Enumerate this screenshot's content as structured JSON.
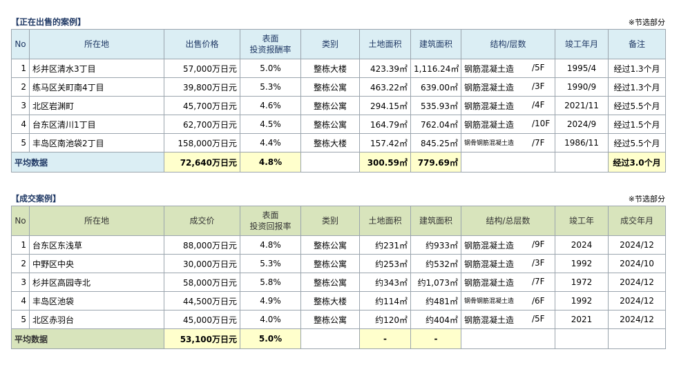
{
  "sections": [
    {
      "title": "【正在出售的案例】",
      "note": "※节选部分",
      "headers": [
        "No",
        "所在地",
        "出售价格",
        [
          "表面",
          "投资报酬率"
        ],
        "类别",
        "土地面积",
        "建筑面积",
        "结构/层数",
        "竣工年月",
        "备注"
      ],
      "rows": [
        [
          1,
          "杉并区清水3丁目",
          "57,000万日元",
          "5.0%",
          "整栋大楼",
          "423.39㎡",
          "1,116.24㎡",
          "钢筋混凝土造",
          "/5F",
          "1995/4",
          "经过1.3个月"
        ],
        [
          2,
          "练马区关町南4丁目",
          "39,800万日元",
          "5.3%",
          "整栋公寓",
          "463.22㎡",
          "639.00㎡",
          "钢筋混凝土造",
          "/3F",
          "1990/9",
          "经过1.3个月"
        ],
        [
          3,
          "北区岩渊町",
          "45,700万日元",
          "4.6%",
          "整栋公寓",
          "294.15㎡",
          "535.93㎡",
          "钢筋混凝土造",
          "/4F",
          "2021/11",
          "经过5.5个月"
        ],
        [
          4,
          "台东区清川1丁目",
          "62,700万日元",
          "4.5%",
          "整栋公寓",
          "164.79㎡",
          "762.04㎡",
          "钢筋混凝土造",
          "/10F",
          "2024/9",
          "经过1.5个月"
        ],
        [
          5,
          "丰岛区南池袋2丁目",
          "158,000万日元",
          "4.4%",
          "整栋大楼",
          "157.42㎡",
          "845.25㎡",
          "钢骨钢筋混凝土造",
          "/7F",
          "1986/11",
          "经过5.5个月"
        ]
      ],
      "average": {
        "label": "平均数据",
        "price": "72,640万日元",
        "yield": "4.8%",
        "land": "300.59㎡",
        "building": "779.69㎡",
        "remark": "经过3.0个月"
      }
    },
    {
      "title": "【成交案例】",
      "note": "※节选部分",
      "headers": [
        "No",
        "所在地",
        "成交价",
        [
          "表面",
          "投资回报率"
        ],
        "类别",
        "土地面积",
        "建筑面积",
        "结构/总层数",
        "竣工年",
        "成交年月"
      ],
      "rows": [
        [
          1,
          "台东区东浅草",
          "88,000万日元",
          "4.8%",
          "整栋公寓",
          "约231㎡",
          "约933㎡",
          "钢筋混凝土造",
          "/9F",
          "2024",
          "2024/12"
        ],
        [
          2,
          "中野区中央",
          "30,000万日元",
          "5.3%",
          "整栋公寓",
          "约253㎡",
          "约532㎡",
          "钢筋混凝土造",
          "/3F",
          "1992",
          "2024/10"
        ],
        [
          3,
          "杉并区高园寺北",
          "58,000万日元",
          "5.8%",
          "整栋公寓",
          "约343㎡",
          "约1,073㎡",
          "钢筋混凝土造",
          "/7F",
          "1972",
          "2024/12"
        ],
        [
          4,
          "丰岛区池袋",
          "44,500万日元",
          "4.9%",
          "整栋大楼",
          "约114㎡",
          "约481㎡",
          "钢骨钢筋混凝土造",
          "/6F",
          "1992",
          "2024/12"
        ],
        [
          5,
          "北区赤羽台",
          "45,000万日元",
          "4.0%",
          "整栋公寓",
          "约120㎡",
          "约404㎡",
          "钢筋混凝土造",
          "/5F",
          "2021",
          "2024/12"
        ]
      ],
      "average": {
        "label": "平均数据",
        "price": "53,100万日元",
        "yield": "5.0%",
        "land": "-",
        "building": "-"
      }
    }
  ]
}
